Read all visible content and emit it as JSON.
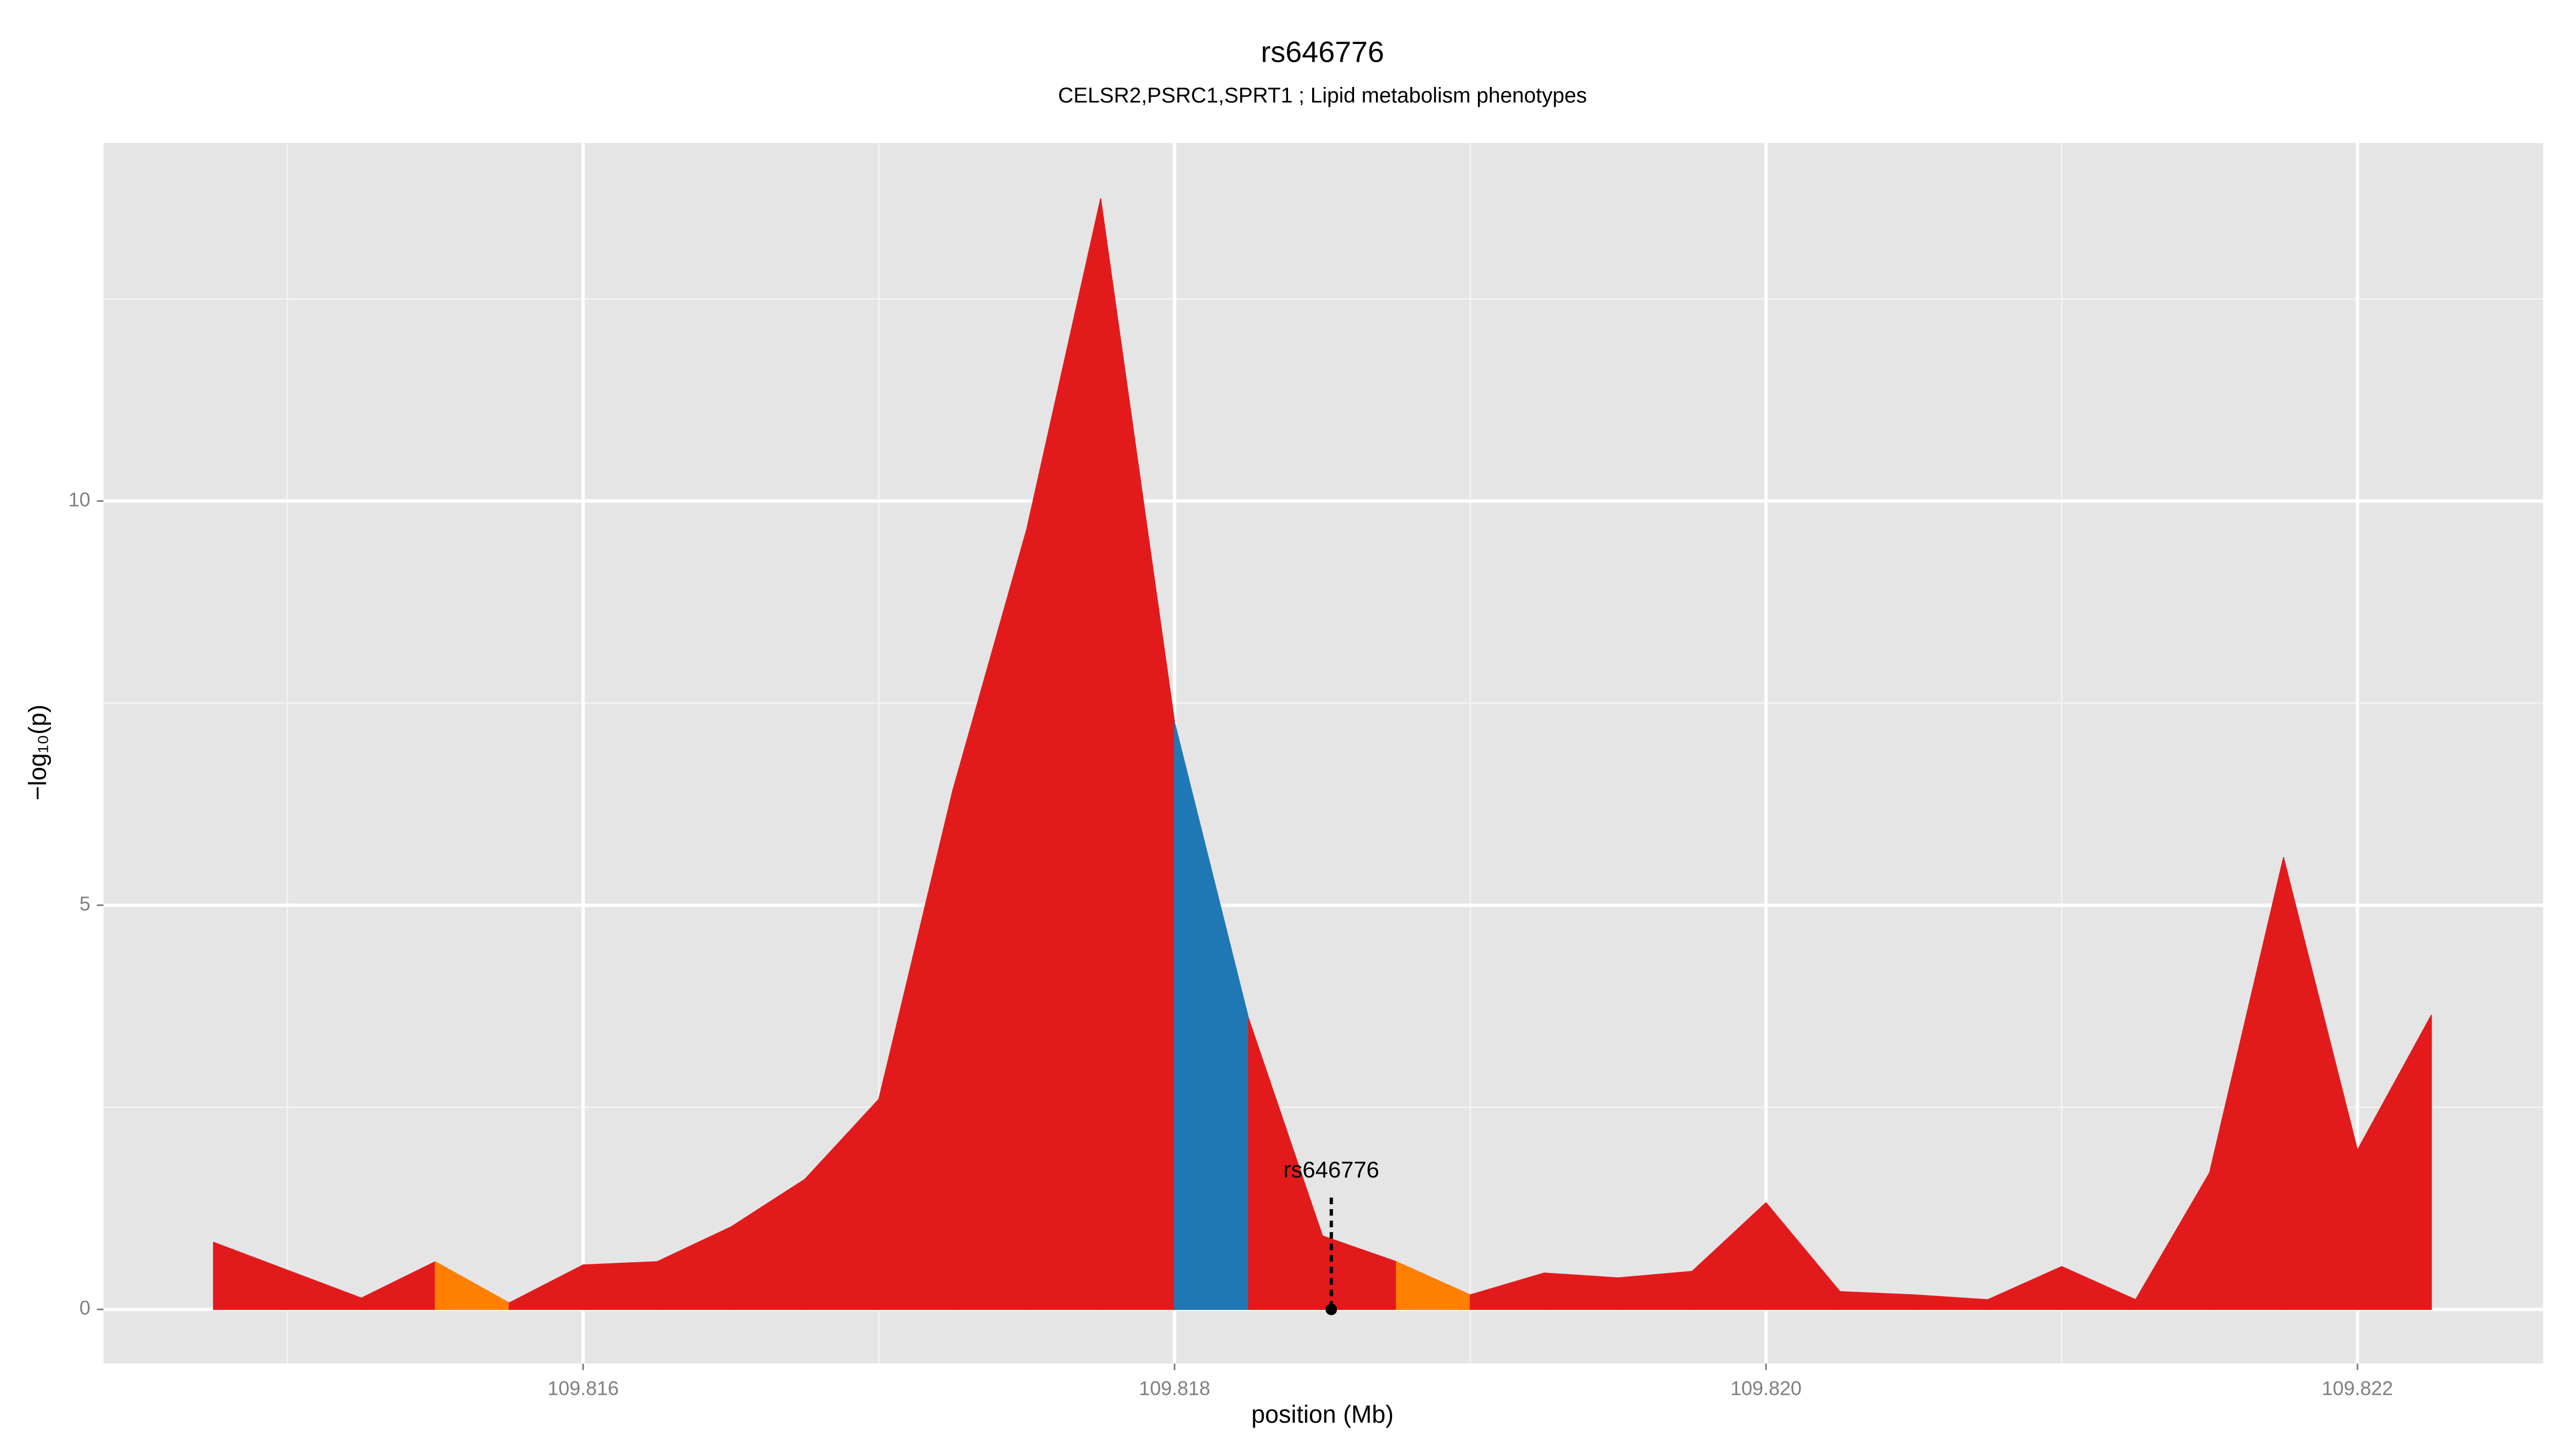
{
  "chart_data": {
    "type": "area",
    "title": "rs646776",
    "subtitle": "CELSR2,PSRC1,SPRT1 ; Lipid metabolism phenotypes",
    "xlabel": "position (Mb)",
    "ylabel": "−log₁₀(p)",
    "x": [
      109.81475,
      109.81525,
      109.8155,
      109.81575,
      109.816,
      109.81625,
      109.8165,
      109.81675,
      109.817,
      109.81725,
      109.8175,
      109.81775,
      109.818,
      109.81825,
      109.8185,
      109.81875,
      109.819,
      109.81925,
      109.8195,
      109.81975,
      109.82,
      109.82025,
      109.8205,
      109.82075,
      109.821,
      109.82125,
      109.8215,
      109.82175,
      109.822,
      109.82225
    ],
    "values": [
      0.83,
      0.14,
      0.59,
      0.08,
      0.55,
      0.59,
      1.02,
      1.61,
      2.6,
      6.42,
      9.65,
      13.74,
      7.26,
      3.6,
      0.91,
      0.59,
      0.18,
      0.45,
      0.39,
      0.47,
      1.32,
      0.22,
      0.18,
      0.12,
      0.53,
      0.12,
      1.69,
      5.59,
      1.97,
      3.64
    ],
    "segment_colors": [
      "#e31a1c",
      "#e31a1c",
      "#ff7f00",
      "#e31a1c",
      "#e31a1c",
      "#e31a1c",
      "#e31a1c",
      "#e31a1c",
      "#e31a1c",
      "#e31a1c",
      "#e31a1c",
      "#e31a1c",
      "#1f78b4",
      "#e31a1c",
      "#e31a1c",
      "#ff7f00",
      "#e31a1c",
      "#e31a1c",
      "#e31a1c",
      "#e31a1c",
      "#e31a1c",
      "#e31a1c",
      "#e31a1c",
      "#e31a1c",
      "#e31a1c",
      "#e31a1c",
      "#e31a1c",
      "#e31a1c",
      "#e31a1c"
    ],
    "xlim": [
      109.814378,
      109.822628
    ],
    "ylim": [
      -0.67,
      14.43
    ],
    "xticks": [
      109.816,
      109.818,
      {
        "value": 109.82,
        "label": "109.820"
      },
      109.822
    ],
    "yticks": [
      0,
      5,
      10
    ],
    "x_minor_grid": [
      109.815,
      109.817,
      109.819,
      109.821
    ],
    "y_minor_grid": [
      2.5,
      7.5,
      12.5
    ],
    "grid": true,
    "marker": {
      "label": "rs646776",
      "x": 109.81853,
      "y": 0
    }
  }
}
